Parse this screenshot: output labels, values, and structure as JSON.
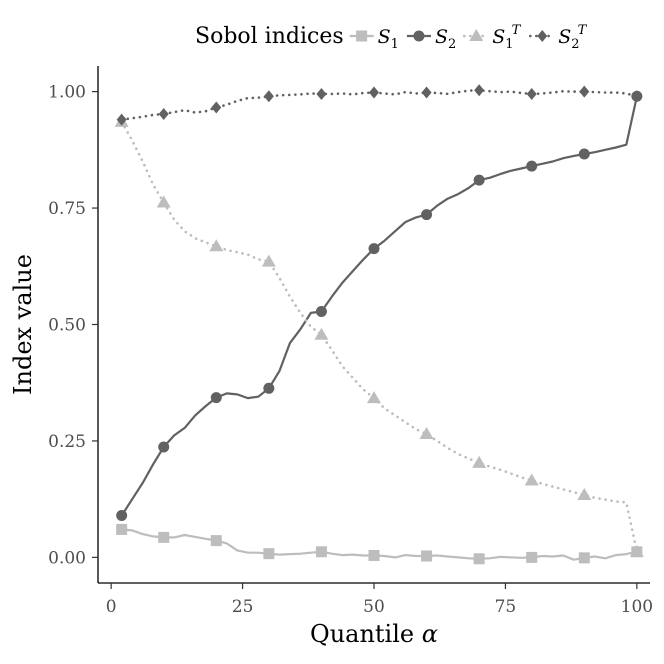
{
  "chart_data": {
    "type": "line",
    "title": "",
    "xlabel": "Quantile α",
    "xlabel_text": "Quantile",
    "xlabel_symbol": "α",
    "ylabel": "Index value",
    "xlim": [
      -2.5,
      102.5
    ],
    "ylim": [
      -0.055,
      1.055
    ],
    "xticks": [
      0,
      25,
      50,
      75,
      100
    ],
    "yticks": [
      0.0,
      0.25,
      0.5,
      0.75,
      1.0
    ],
    "ytick_labels": [
      "0.00",
      "0.25",
      "0.50",
      "0.75",
      "1.00"
    ],
    "grid": false,
    "legend": {
      "title": "Sobol indices",
      "position": "top",
      "labels": [
        {
          "base": "S",
          "sub": "1",
          "sup": ""
        },
        {
          "base": "S",
          "sub": "2",
          "sup": ""
        },
        {
          "base": "S",
          "sub": "1",
          "sup": "T"
        },
        {
          "base": "S",
          "sub": "2",
          "sup": "T"
        }
      ]
    },
    "series": [
      {
        "name": "S1",
        "color": "#bdbdbd",
        "line": "solid",
        "marker": "square",
        "x": [
          2,
          4,
          6,
          8,
          10,
          12,
          14,
          16,
          18,
          20,
          22,
          24,
          26,
          28,
          30,
          32,
          34,
          36,
          38,
          40,
          42,
          44,
          46,
          48,
          50,
          52,
          54,
          56,
          58,
          60,
          62,
          64,
          66,
          68,
          70,
          72,
          74,
          76,
          78,
          80,
          82,
          84,
          86,
          88,
          90,
          92,
          94,
          96,
          98,
          100
        ],
        "y": [
          0.06,
          0.058,
          0.05,
          0.045,
          0.043,
          0.043,
          0.048,
          0.044,
          0.04,
          0.036,
          0.03,
          0.015,
          0.01,
          0.01,
          0.008,
          0.006,
          0.007,
          0.008,
          0.01,
          0.012,
          0.008,
          0.005,
          0.006,
          0.004,
          0.004,
          0.003,
          0.0,
          0.005,
          0.003,
          0.003,
          0.004,
          0.002,
          0.0,
          -0.002,
          -0.003,
          -0.002,
          0.001,
          0.0,
          -0.001,
          0.0,
          0.003,
          0.002,
          0.004,
          -0.005,
          -0.001,
          0.002,
          -0.002,
          0.005,
          0.007,
          0.012
        ],
        "marker_x": [
          2,
          10,
          20,
          30,
          40,
          50,
          60,
          70,
          80,
          90,
          100
        ],
        "marker_y": [
          0.06,
          0.043,
          0.036,
          0.008,
          0.012,
          0.004,
          0.003,
          -0.003,
          0.0,
          -0.001,
          0.012
        ]
      },
      {
        "name": "S2",
        "color": "#616161",
        "line": "solid",
        "marker": "circle",
        "x": [
          2,
          4,
          6,
          8,
          10,
          12,
          14,
          16,
          18,
          20,
          22,
          24,
          26,
          28,
          30,
          32,
          34,
          36,
          38,
          40,
          42,
          44,
          46,
          48,
          50,
          52,
          54,
          56,
          58,
          60,
          62,
          64,
          66,
          68,
          70,
          72,
          74,
          76,
          78,
          80,
          82,
          84,
          86,
          88,
          90,
          92,
          94,
          96,
          98,
          100
        ],
        "y": [
          0.09,
          0.125,
          0.16,
          0.2,
          0.237,
          0.262,
          0.278,
          0.305,
          0.325,
          0.343,
          0.352,
          0.35,
          0.342,
          0.345,
          0.363,
          0.4,
          0.46,
          0.49,
          0.525,
          0.528,
          0.56,
          0.59,
          0.615,
          0.64,
          0.663,
          0.68,
          0.7,
          0.72,
          0.73,
          0.736,
          0.755,
          0.77,
          0.78,
          0.793,
          0.81,
          0.815,
          0.823,
          0.83,
          0.835,
          0.84,
          0.845,
          0.85,
          0.857,
          0.862,
          0.866,
          0.87,
          0.875,
          0.88,
          0.886,
          0.99
        ],
        "marker_x": [
          2,
          10,
          20,
          30,
          40,
          50,
          60,
          70,
          80,
          90,
          100
        ],
        "marker_y": [
          0.09,
          0.237,
          0.343,
          0.363,
          0.528,
          0.663,
          0.736,
          0.81,
          0.84,
          0.866,
          0.99
        ]
      },
      {
        "name": "S1T",
        "color": "#bdbdbd",
        "line": "dotted",
        "marker": "triangle",
        "x": [
          2,
          4,
          6,
          8,
          10,
          12,
          14,
          16,
          18,
          20,
          22,
          24,
          26,
          28,
          30,
          32,
          34,
          36,
          38,
          40,
          42,
          44,
          46,
          48,
          50,
          52,
          54,
          56,
          58,
          60,
          62,
          64,
          66,
          68,
          70,
          72,
          74,
          76,
          78,
          80,
          82,
          84,
          86,
          88,
          90,
          92,
          94,
          96,
          98,
          100
        ],
        "y": [
          0.935,
          0.895,
          0.85,
          0.8,
          0.762,
          0.725,
          0.7,
          0.685,
          0.676,
          0.668,
          0.66,
          0.655,
          0.65,
          0.64,
          0.635,
          0.6,
          0.56,
          0.525,
          0.495,
          0.478,
          0.445,
          0.41,
          0.385,
          0.36,
          0.342,
          0.32,
          0.305,
          0.29,
          0.275,
          0.265,
          0.25,
          0.235,
          0.222,
          0.212,
          0.203,
          0.195,
          0.188,
          0.18,
          0.172,
          0.165,
          0.158,
          0.152,
          0.146,
          0.14,
          0.134,
          0.128,
          0.124,
          0.12,
          0.118,
          0.012
        ],
        "marker_x": [
          2,
          10,
          20,
          30,
          40,
          50,
          60,
          70,
          80,
          90,
          100
        ],
        "marker_y": [
          0.935,
          0.762,
          0.668,
          0.635,
          0.478,
          0.342,
          0.265,
          0.203,
          0.165,
          0.134,
          0.012
        ]
      },
      {
        "name": "S2T",
        "color": "#616161",
        "line": "dotted",
        "marker": "diamond",
        "x": [
          2,
          4,
          6,
          8,
          10,
          12,
          14,
          16,
          18,
          20,
          22,
          24,
          26,
          28,
          30,
          32,
          34,
          36,
          38,
          40,
          42,
          44,
          46,
          48,
          50,
          52,
          54,
          56,
          58,
          60,
          62,
          64,
          66,
          68,
          70,
          72,
          74,
          76,
          78,
          80,
          82,
          84,
          86,
          88,
          90,
          92,
          94,
          96,
          98,
          100
        ],
        "y": [
          0.94,
          0.943,
          0.946,
          0.95,
          0.952,
          0.956,
          0.96,
          0.955,
          0.958,
          0.966,
          0.972,
          0.98,
          0.986,
          0.987,
          0.99,
          0.992,
          0.993,
          0.994,
          0.996,
          0.995,
          0.995,
          0.996,
          0.994,
          0.997,
          0.998,
          0.996,
          0.994,
          0.999,
          0.996,
          0.998,
          0.997,
          0.995,
          0.999,
          1.002,
          1.003,
          1.001,
          0.999,
          1.0,
          0.997,
          0.995,
          0.996,
          0.998,
          1.001,
          1.0,
          1.0,
          0.999,
          0.998,
          0.998,
          0.996,
          0.99
        ],
        "marker_x": [
          2,
          10,
          20,
          30,
          40,
          50,
          60,
          70,
          80,
          90,
          100
        ],
        "marker_y": [
          0.94,
          0.952,
          0.966,
          0.99,
          0.995,
          0.998,
          0.998,
          1.003,
          0.995,
          1.0,
          0.99
        ]
      }
    ]
  }
}
